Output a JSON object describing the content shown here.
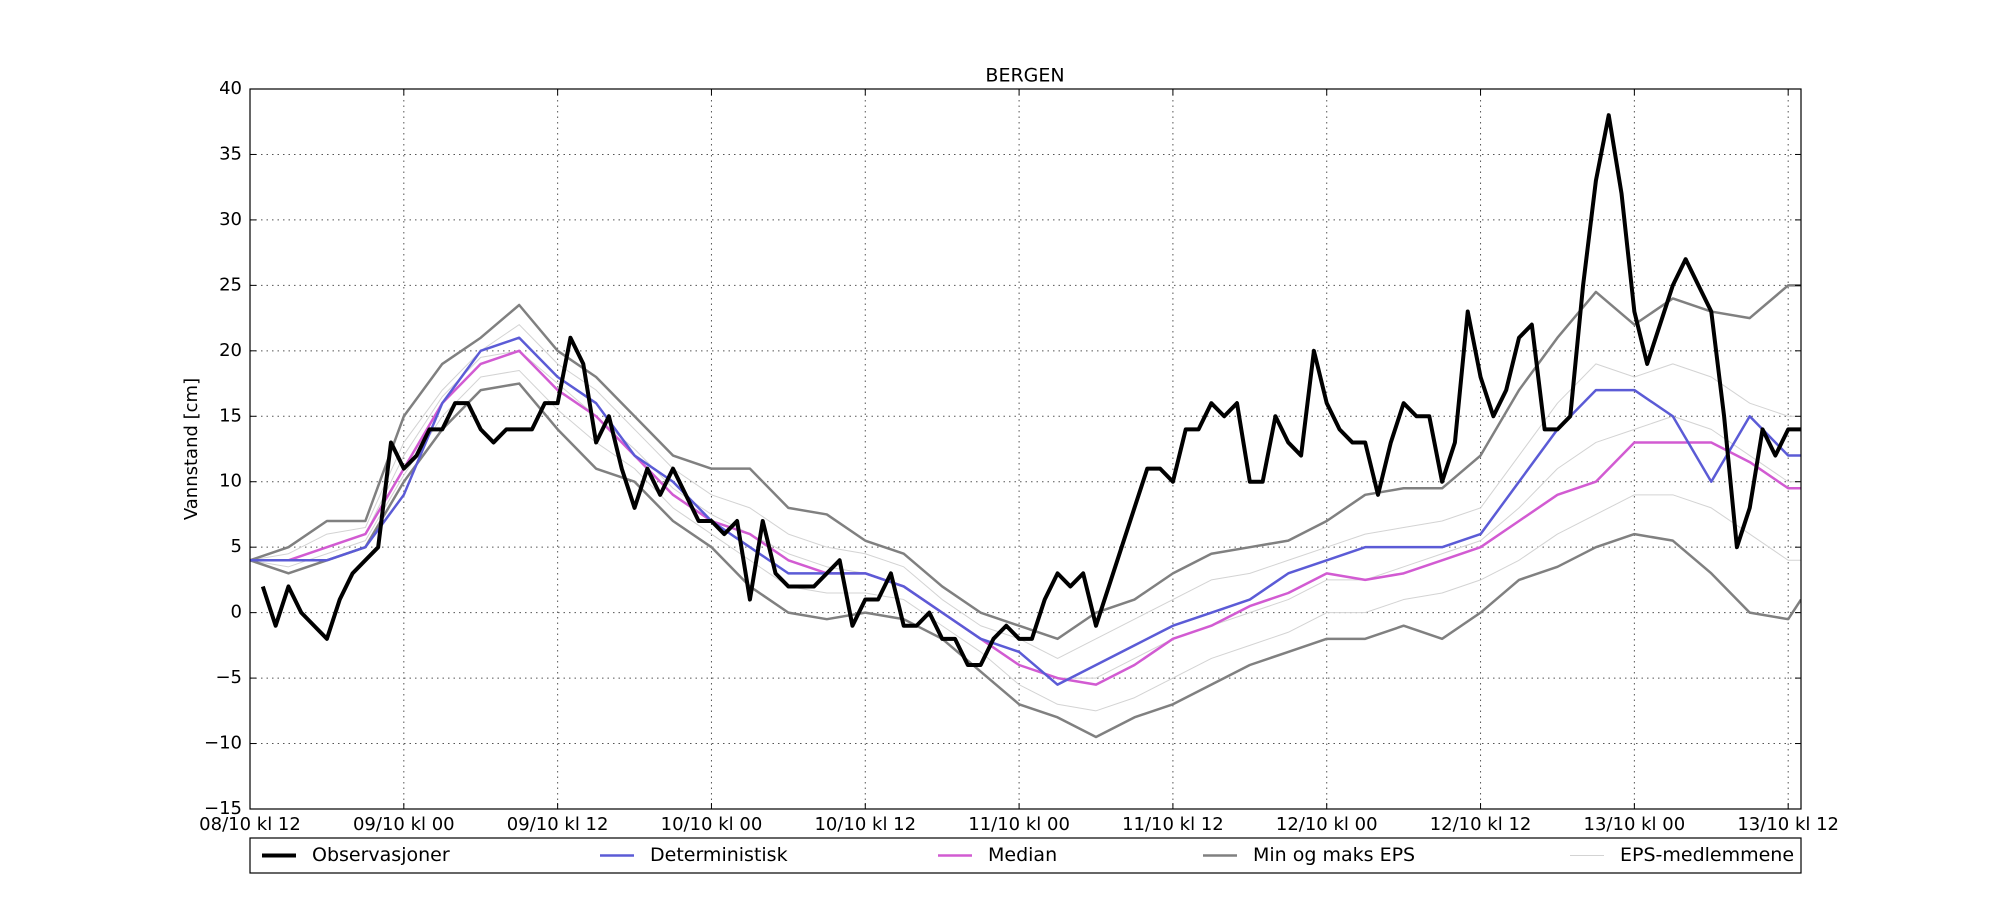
{
  "chart_data": {
    "type": "line",
    "title": "BERGEN",
    "ylabel": "Vannstand [cm]",
    "xlim": [
      0,
      121
    ],
    "ylim": [
      -15,
      40
    ],
    "yticks": [
      {
        "value": -15,
        "label": "−15"
      },
      {
        "value": -10,
        "label": "−10"
      },
      {
        "value": -5,
        "label": "−5"
      },
      0,
      5,
      10,
      15,
      20,
      25,
      30,
      35,
      40
    ],
    "xticks": [
      {
        "value": 0,
        "label": "08/10 kl 12"
      },
      {
        "value": 12,
        "label": "09/10 kl 00"
      },
      {
        "value": 24,
        "label": "09/10 kl 12"
      },
      {
        "value": 36,
        "label": "10/10 kl 00"
      },
      {
        "value": 48,
        "label": "10/10 kl 12"
      },
      {
        "value": 60,
        "label": "11/10 kl 00"
      },
      {
        "value": 72,
        "label": "11/10 kl 12"
      },
      {
        "value": 84,
        "label": "12/10 kl 00"
      },
      {
        "value": 96,
        "label": "12/10 kl 12"
      },
      {
        "value": 108,
        "label": "13/10 kl 00"
      },
      {
        "value": 120,
        "label": "13/10 kl 12"
      }
    ],
    "grid": true,
    "legend": "bottom",
    "x": [
      0,
      3,
      6,
      9,
      12,
      15,
      18,
      21,
      24,
      27,
      30,
      33,
      36,
      39,
      42,
      45,
      48,
      51,
      54,
      57,
      60,
      63,
      66,
      69,
      72,
      75,
      78,
      81,
      84,
      87,
      90,
      93,
      96,
      99,
      102,
      105,
      108,
      111,
      114,
      117,
      120,
      121
    ],
    "series": [
      {
        "name": "Observasjoner",
        "color": "#000000",
        "x": [
          1,
          2,
          3,
          4,
          5,
          6,
          7,
          8,
          9,
          10,
          11,
          12,
          13,
          14,
          15,
          16,
          17,
          18,
          19,
          20,
          21,
          22,
          23,
          24,
          25,
          26,
          27,
          28,
          29,
          30,
          31,
          32,
          33,
          34,
          35,
          36,
          37,
          38,
          39,
          40,
          41,
          42,
          43,
          44,
          45,
          46,
          47,
          48,
          49,
          50,
          51,
          52,
          53,
          54,
          55,
          56,
          57,
          58,
          59,
          60,
          61,
          62,
          63,
          64,
          65,
          66,
          67,
          68,
          69,
          70,
          71,
          72,
          73,
          74,
          75,
          76,
          77,
          78,
          79,
          80,
          81,
          82,
          83,
          84,
          85,
          86,
          87,
          88,
          89,
          90,
          91,
          92,
          93,
          94,
          95,
          96,
          97,
          98,
          99,
          100,
          101,
          102,
          103,
          104,
          105,
          106,
          107,
          108,
          109,
          110,
          111,
          112,
          113,
          114,
          115,
          116,
          117,
          118,
          119,
          120,
          121
        ],
        "values": [
          2,
          -1,
          2,
          0,
          -1,
          -2,
          1,
          3,
          4,
          5,
          13,
          11,
          12,
          14,
          14,
          16,
          16,
          14,
          13,
          14,
          14,
          14,
          16,
          16,
          21,
          19,
          13,
          15,
          11,
          8,
          11,
          9,
          11,
          9,
          7,
          7,
          6,
          7,
          1,
          7,
          3,
          2,
          2,
          2,
          3,
          4,
          -1,
          1,
          1,
          3,
          -1,
          -1,
          0,
          -2,
          -2,
          -4,
          -4,
          -2,
          -1,
          -2,
          -2,
          1,
          3,
          2,
          3,
          -1,
          2,
          5,
          8,
          11,
          11,
          10,
          14,
          14,
          16,
          15,
          16,
          10,
          10,
          15,
          13,
          12,
          20,
          16,
          14,
          13,
          13,
          9,
          13,
          16,
          15,
          15,
          10,
          13,
          23,
          18,
          15,
          17,
          21,
          22,
          14,
          14,
          15,
          25,
          33,
          38,
          32,
          23,
          19,
          22,
          25,
          27,
          25,
          23,
          15,
          5,
          8,
          14,
          12,
          14,
          14
        ]
      },
      {
        "name": "Deterministisk",
        "color": "#5b5bd6",
        "values": [
          4,
          4,
          4,
          5,
          9,
          16,
          20,
          21,
          18,
          16,
          12,
          10,
          7,
          5,
          3,
          3,
          3,
          2,
          0,
          -2,
          -3,
          -5.5,
          -4,
          -2.5,
          -1,
          0,
          1,
          3,
          4,
          5,
          5,
          5,
          6,
          10,
          14,
          17,
          17,
          15,
          10,
          15,
          12,
          12
        ]
      },
      {
        "name": "Median",
        "color": "#d25bd2",
        "values": [
          4,
          4,
          5,
          6,
          11,
          16,
          19,
          20,
          17,
          15,
          12,
          9,
          7,
          6,
          4,
          3,
          3,
          2,
          0,
          -2,
          -4,
          -5,
          -5.5,
          -4,
          -2,
          -1,
          0.5,
          1.5,
          3,
          2.5,
          3,
          4,
          5,
          7,
          9,
          10,
          13,
          13,
          13,
          11.5,
          9.5,
          9.5
        ]
      },
      {
        "name": "Min og maks EPS",
        "color": "#808080",
        "values": [
          4,
          5,
          7,
          7,
          15,
          19,
          21,
          23.5,
          20,
          18,
          15,
          12,
          11,
          11,
          8,
          7.5,
          5.5,
          4.5,
          2,
          0,
          -1,
          -2,
          0,
          1,
          3,
          4.5,
          5,
          5.5,
          7,
          9,
          9.5,
          9.5,
          12,
          17,
          21,
          24.5,
          22,
          24,
          23,
          22.5,
          25,
          25
        ],
        "min_values": [
          4,
          3,
          4,
          5,
          10,
          14,
          17,
          17.5,
          14,
          11,
          10,
          7,
          5,
          2,
          0,
          -0.5,
          0,
          -0.5,
          -2,
          -4.5,
          -7,
          -8,
          -9.5,
          -8,
          -7,
          -5.5,
          -4,
          -3,
          -2,
          -2,
          -1,
          -2,
          0,
          2.5,
          3.5,
          5,
          6,
          5.5,
          3,
          0,
          -0.5,
          1
        ]
      },
      {
        "name": "EPS-medlemmene",
        "color": "#d3d3d3",
        "members": [
          [
            4,
            4.5,
            6,
            6.5,
            13,
            17,
            20,
            22,
            19,
            17,
            14,
            11,
            9,
            8,
            6,
            5,
            4.5,
            3.5,
            1,
            -1,
            -2,
            -3.5,
            -2,
            -0.5,
            1,
            2.5,
            3,
            4,
            5,
            6,
            6.5,
            7,
            8,
            12,
            16,
            19,
            18,
            19,
            18,
            16,
            15,
            15
          ],
          [
            4,
            3.5,
            4.5,
            5.5,
            10.5,
            15,
            18,
            18.5,
            15.5,
            13,
            11,
            8,
            6,
            4,
            2,
            1.5,
            1.5,
            1,
            -1,
            -3,
            -5.5,
            -7,
            -7.5,
            -6.5,
            -5,
            -3.5,
            -2.5,
            -1.5,
            0,
            0,
            1,
            1.5,
            2.5,
            4,
            6,
            7.5,
            9,
            9,
            8,
            6,
            4,
            4
          ],
          [
            4,
            4,
            5,
            6,
            12,
            16.5,
            19.5,
            20,
            17.5,
            15,
            12.5,
            9.5,
            7.5,
            6,
            4.5,
            3.5,
            3,
            2,
            0,
            -2,
            -4,
            -5,
            -5,
            -3.5,
            -2,
            -1,
            0,
            1,
            2.5,
            2.5,
            3.5,
            4.5,
            5.5,
            8,
            11,
            13,
            14,
            15,
            14,
            12,
            10,
            10
          ]
        ]
      }
    ]
  }
}
